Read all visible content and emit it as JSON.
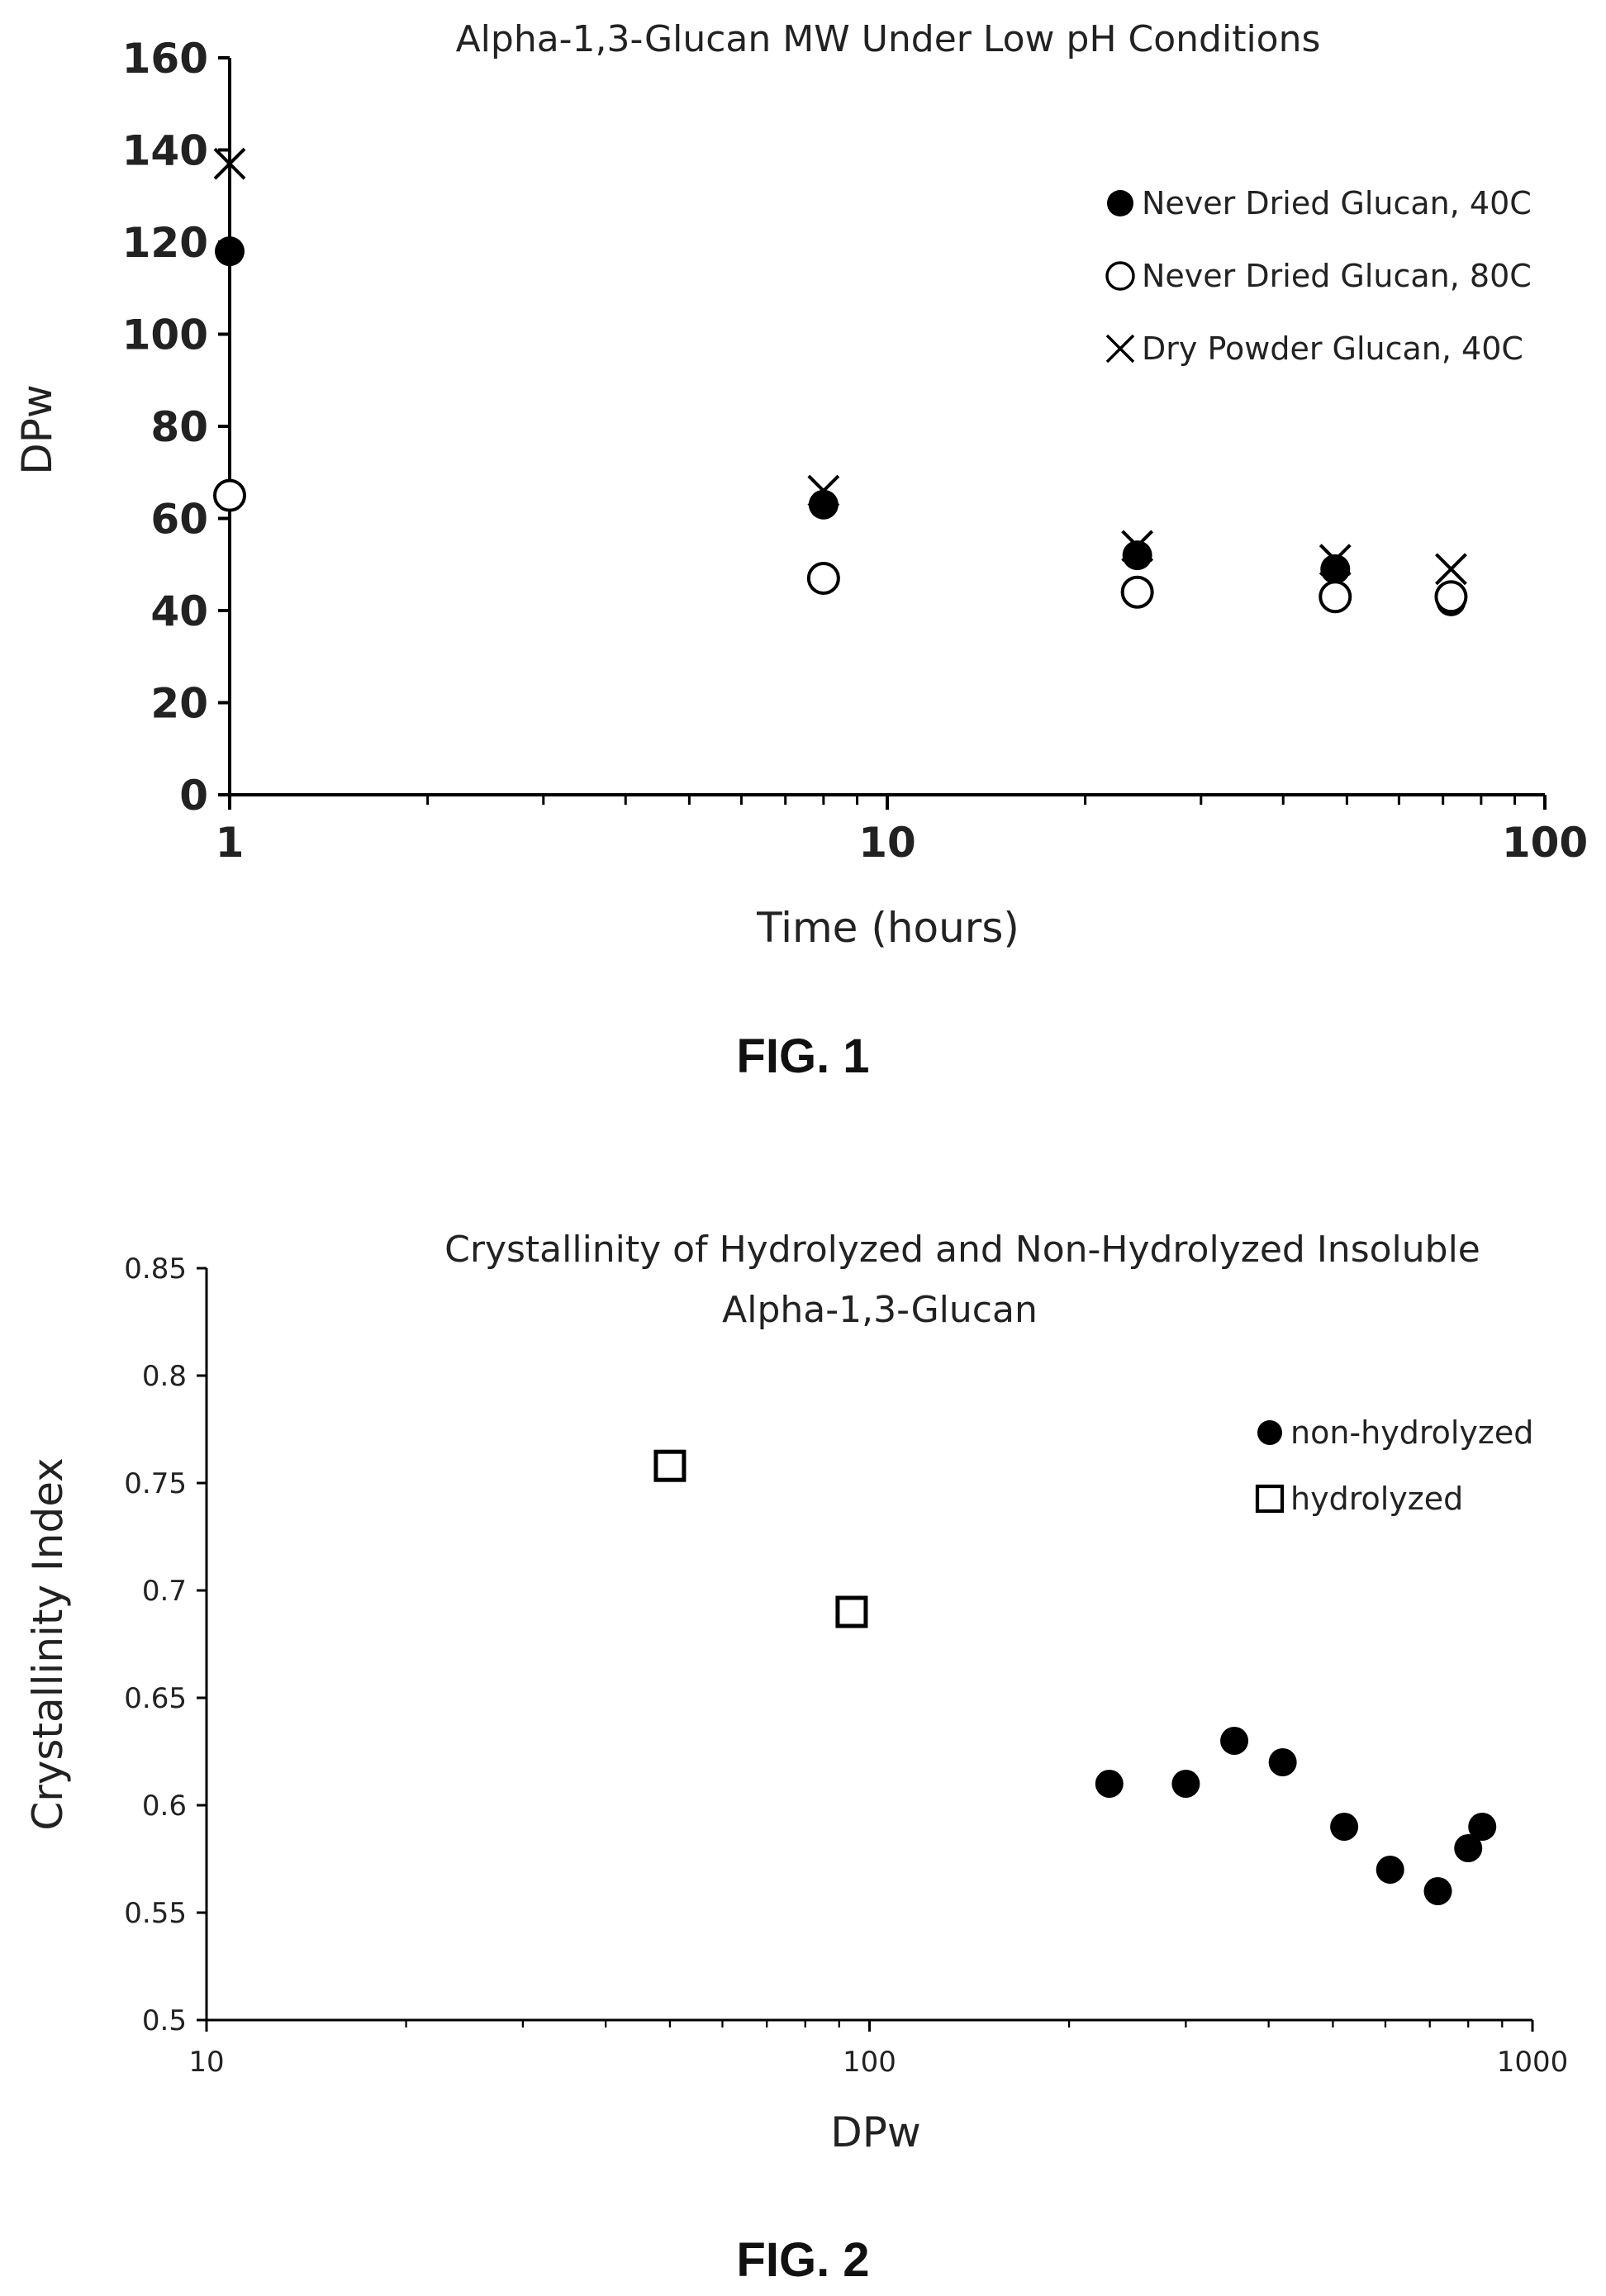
{
  "chart_data": [
    {
      "type": "scatter",
      "title": "Alpha-1,3-Glucan MW Under Low pH Conditions",
      "xlabel": "Time (hours)",
      "ylabel": "DPw",
      "xscale": "log",
      "xlim": [
        1,
        100
      ],
      "ylim": [
        0,
        160
      ],
      "xticks": [
        1,
        10,
        100
      ],
      "xtick_labels": [
        "1",
        "10",
        "100"
      ],
      "yticks": [
        0,
        20,
        40,
        60,
        80,
        100,
        120,
        140,
        160
      ],
      "ytick_labels": [
        "0",
        "20",
        "40",
        "60",
        "80",
        "100",
        "120",
        "140",
        "160"
      ],
      "grid": false,
      "legend_position": "top-right",
      "caption": "FIG. 1",
      "series": [
        {
          "name": "Never Dried Glucan, 40C",
          "marker": "filled-circle",
          "x": [
            1,
            8,
            24,
            48,
            72
          ],
          "y": [
            118,
            63,
            52,
            49,
            42
          ]
        },
        {
          "name": "Never Dried Glucan, 80C",
          "marker": "open-circle",
          "x": [
            1,
            8,
            24,
            48,
            72
          ],
          "y": [
            65,
            47,
            44,
            43,
            43
          ]
        },
        {
          "name": "Dry Powder Glucan, 40C",
          "marker": "x",
          "x": [
            1,
            8,
            24,
            48,
            72
          ],
          "y": [
            137,
            66,
            54,
            51,
            49
          ]
        }
      ]
    },
    {
      "type": "scatter",
      "title": "Crystallinity of Hydrolyzed and Non-Hydrolyzed Insoluble Alpha-1,3-Glucan",
      "title_lines": [
        "Crystallinity of Hydrolyzed and Non-Hydrolyzed Insoluble",
        "Alpha-1,3-Glucan"
      ],
      "xlabel": "DPw",
      "ylabel": "Crystallinity Index",
      "xscale": "log",
      "xlim": [
        10,
        1000
      ],
      "ylim": [
        0.5,
        0.85
      ],
      "xticks": [
        10,
        100,
        1000
      ],
      "xtick_labels": [
        "10",
        "100",
        "1000"
      ],
      "yticks": [
        0.5,
        0.55,
        0.6,
        0.65,
        0.7,
        0.75,
        0.8,
        0.85
      ],
      "ytick_labels": [
        "0.5",
        "0.55",
        "0.6",
        "0.65",
        "0.7",
        "0.75",
        "0.8",
        "0.85"
      ],
      "grid": false,
      "legend_position": "top-right",
      "caption": "FIG. 2",
      "series": [
        {
          "name": "non-hydrolyzed",
          "marker": "filled-circle",
          "x": [
            230,
            300,
            355,
            420,
            520,
            610,
            720,
            800,
            840
          ],
          "y": [
            0.61,
            0.61,
            0.63,
            0.62,
            0.59,
            0.57,
            0.56,
            0.58,
            0.59
          ]
        },
        {
          "name": "hydrolyzed",
          "marker": "open-square",
          "x": [
            50,
            94
          ],
          "y": [
            0.758,
            0.69
          ]
        }
      ]
    }
  ]
}
